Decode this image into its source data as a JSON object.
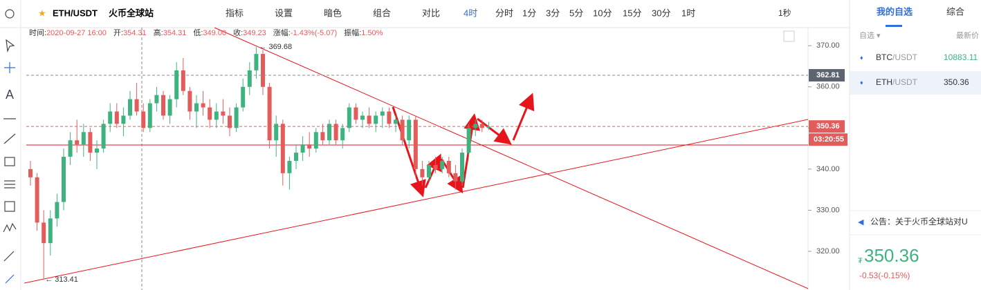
{
  "toolbar": {
    "symbol": "ETH/USDT",
    "exchange": "火币全球站",
    "buttons": [
      "指标",
      "设置",
      "暗色",
      "组合",
      "对比"
    ],
    "intervals": [
      "4时",
      "分时",
      "1分",
      "3分",
      "5分",
      "10分",
      "15分",
      "30分",
      "1时"
    ],
    "realtime": "1秒"
  },
  "info": [
    {
      "label": "时间:",
      "value": "2020-09-27 16:00"
    },
    {
      "label": "开:",
      "value": "354.31"
    },
    {
      "label": "高:",
      "value": "354.31"
    },
    {
      "label": "低:",
      "value": "349.00"
    },
    {
      "label": "收:",
      "value": "349.23"
    },
    {
      "label": "涨幅:",
      "value": "-1.43%(-5.07)"
    },
    {
      "label": "振幅:",
      "value": "1.50%"
    }
  ],
  "chart_data": {
    "type": "candlestick",
    "up_color": "#3fb37f",
    "down_color": "#e25c5c",
    "ylim": [
      310.6,
      374.4
    ],
    "yticks": [
      {
        "value": 320,
        "label": "320.00"
      },
      {
        "value": 330,
        "label": "330.00"
      },
      {
        "value": 340,
        "label": "340.00"
      },
      {
        "value": 350,
        "label": "350.00"
      },
      {
        "value": 360,
        "label": "360.00"
      },
      {
        "value": 370,
        "label": "370.00"
      }
    ],
    "max_label": {
      "value": 369.68,
      "label": "369.68"
    },
    "min_label": {
      "value": 313.41,
      "label": "313.41"
    },
    "ref_price": {
      "value": 362.81,
      "label": "362.81"
    },
    "last_price": {
      "value": 350.36,
      "label": "350.36"
    },
    "countdown": "03:20:55",
    "candles": [
      [
        340,
        342,
        336,
        338
      ],
      [
        338,
        339,
        325,
        327
      ],
      [
        327,
        330,
        313.41,
        322
      ],
      [
        322,
        330,
        319,
        328
      ],
      [
        328,
        334,
        326,
        332
      ],
      [
        332,
        345,
        330,
        343
      ],
      [
        343,
        349,
        341,
        347
      ],
      [
        347,
        352,
        344,
        346
      ],
      [
        346,
        351,
        343,
        349
      ],
      [
        349,
        350,
        342,
        344
      ],
      [
        344,
        347,
        340,
        345
      ],
      [
        345,
        352,
        344,
        351
      ],
      [
        351,
        356,
        349,
        354
      ],
      [
        354,
        356,
        350,
        351
      ],
      [
        351,
        355,
        348,
        353
      ],
      [
        353,
        359,
        352,
        357
      ],
      [
        357,
        361,
        353,
        354
      ],
      [
        354,
        356,
        349,
        350
      ],
      [
        350,
        357,
        349,
        356
      ],
      [
        356,
        360,
        354,
        358
      ],
      [
        358,
        359,
        352,
        353
      ],
      [
        353,
        358,
        351,
        357
      ],
      [
        357,
        366,
        355,
        364
      ],
      [
        364,
        367,
        358,
        359
      ],
      [
        359,
        360,
        352,
        354
      ],
      [
        354,
        358,
        350,
        356
      ],
      [
        356,
        359,
        353,
        355
      ],
      [
        355,
        357,
        350,
        352
      ],
      [
        352,
        356,
        350,
        354
      ],
      [
        354,
        357,
        351,
        353
      ],
      [
        353,
        355,
        348,
        350
      ],
      [
        350,
        356,
        349,
        355
      ],
      [
        355,
        362,
        354,
        360
      ],
      [
        360,
        366,
        358,
        364
      ],
      [
        364,
        369.68,
        362,
        368
      ],
      [
        368,
        369,
        358,
        360
      ],
      [
        360,
        361,
        345,
        347
      ],
      [
        347,
        353,
        343,
        351
      ],
      [
        351,
        352,
        336,
        339
      ],
      [
        339,
        343,
        335,
        342
      ],
      [
        342,
        346,
        340,
        344
      ],
      [
        344,
        348,
        342,
        346
      ],
      [
        346,
        349,
        343,
        345
      ],
      [
        345,
        350,
        344,
        349
      ],
      [
        349,
        351,
        346,
        347
      ],
      [
        347,
        352,
        346,
        351
      ],
      [
        351,
        352,
        346,
        347
      ],
      [
        347,
        351,
        345,
        350
      ],
      [
        350,
        356,
        349,
        355
      ],
      [
        355,
        356,
        351,
        352
      ],
      [
        352,
        354,
        350,
        353
      ],
      [
        353,
        355,
        350,
        351
      ],
      [
        351,
        354,
        349,
        353
      ],
      [
        353,
        355,
        350,
        354
      ],
      [
        354,
        355,
        350,
        351
      ],
      [
        351,
        353,
        349,
        352
      ],
      [
        352,
        353,
        346,
        347
      ],
      [
        347,
        353,
        345,
        352
      ],
      [
        352,
        353,
        338,
        340
      ],
      [
        340,
        342,
        336,
        338
      ],
      [
        338,
        342,
        337,
        341
      ],
      [
        341,
        343,
        339,
        340
      ],
      [
        340,
        343,
        339,
        342
      ],
      [
        342,
        343,
        338,
        339
      ],
      [
        339,
        341,
        335,
        337
      ],
      [
        337,
        345,
        336,
        344
      ],
      [
        344,
        351,
        343,
        350
      ],
      [
        350,
        352,
        348,
        351
      ],
      [
        351,
        352,
        349,
        350
      ],
      [
        350,
        351.5,
        349.5,
        350.36
      ]
    ]
  },
  "panel": {
    "tabs": [
      "我的自选",
      "综合"
    ],
    "col_left": "自选 ▾",
    "col_right": "最新价",
    "rows": [
      {
        "base": "BTC",
        "quote": "/USDT",
        "price": "10883.11"
      },
      {
        "base": "ETH",
        "quote": "/USDT",
        "price": "350.36"
      }
    ],
    "notice": "公告：关于火币全球站对U",
    "currency": "₮",
    "price": "350.36",
    "change": "-0.53(-0.15%)"
  }
}
